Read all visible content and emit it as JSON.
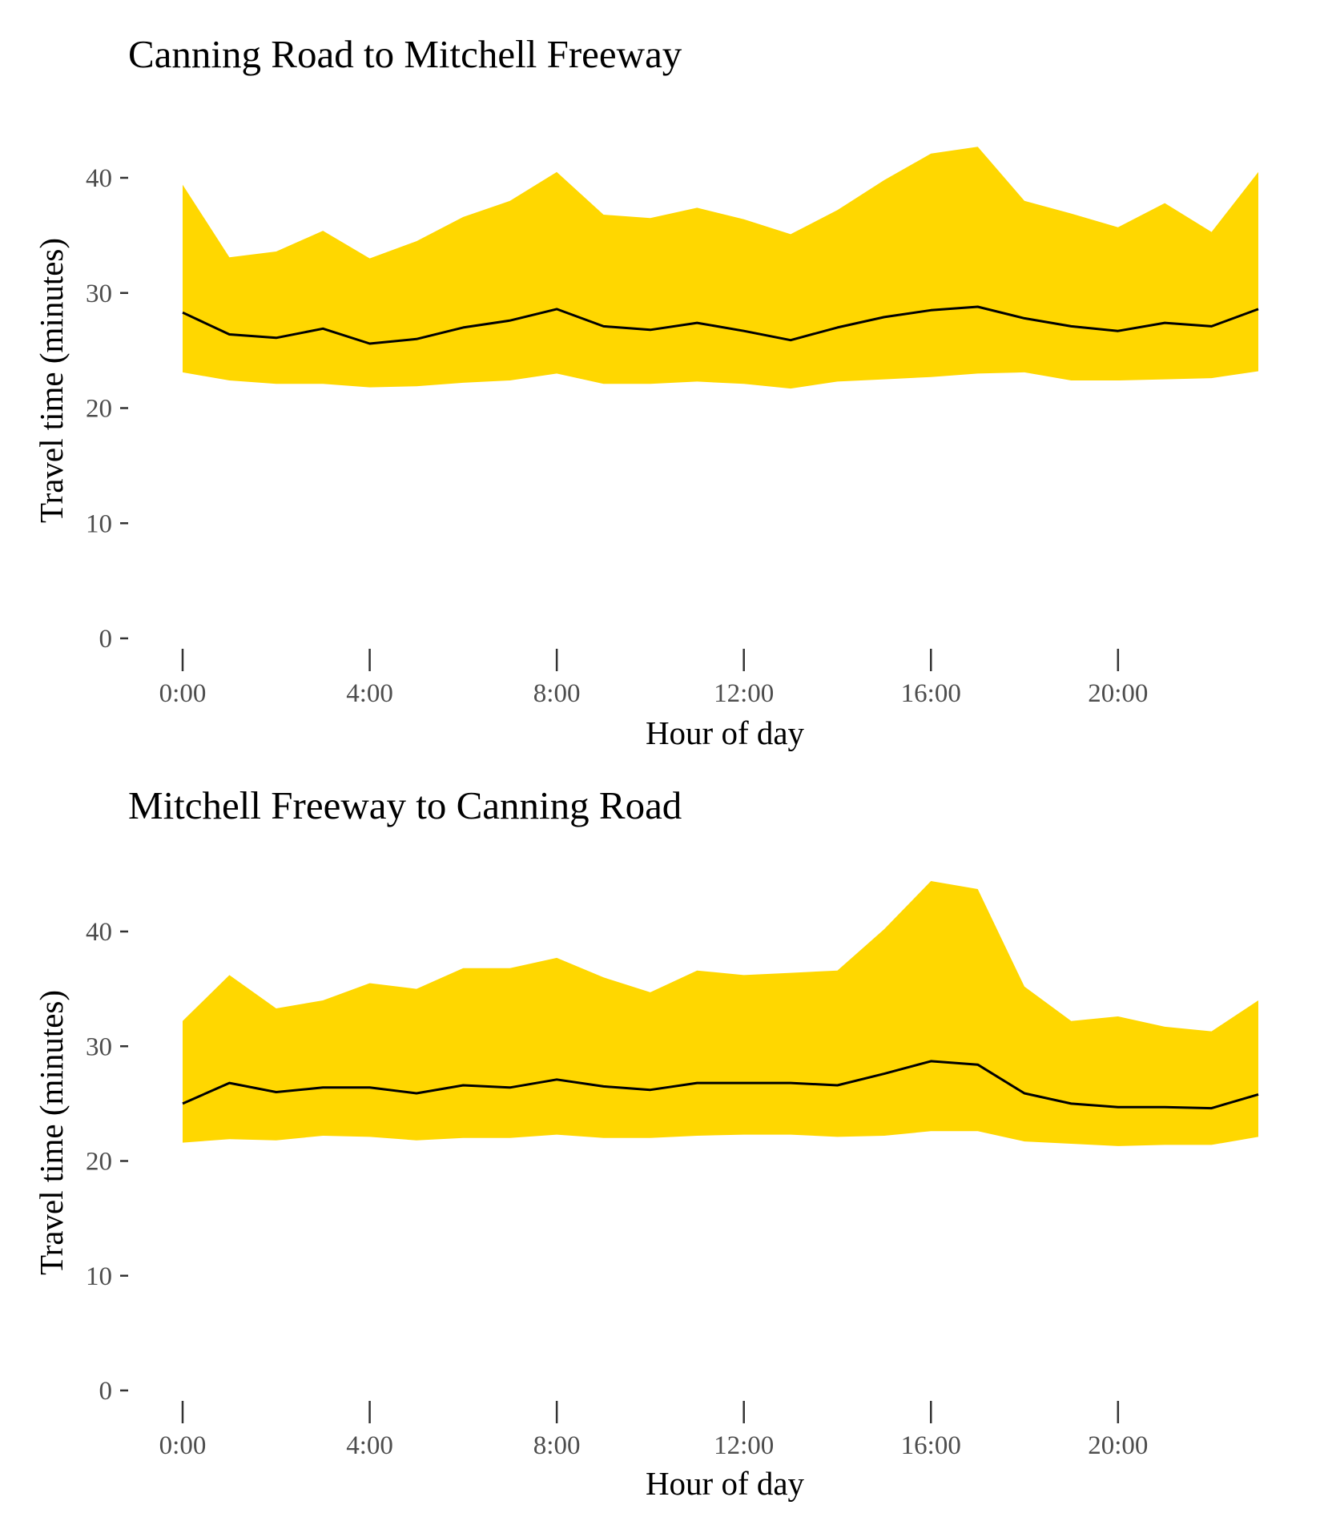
{
  "chart_data": [
    {
      "type": "area",
      "title": "Canning Road to Mitchell Freeway",
      "xlabel": "Hour of day",
      "ylabel": "Travel time (minutes)",
      "x": [
        0,
        1,
        2,
        3,
        4,
        5,
        6,
        7,
        8,
        9,
        10,
        11,
        12,
        13,
        14,
        15,
        16,
        17,
        18,
        19,
        20,
        21,
        22,
        23
      ],
      "xticks": [
        0,
        4,
        8,
        12,
        16,
        20
      ],
      "xtick_labels": [
        "0:00",
        "4:00",
        "8:00",
        "12:00",
        "16:00",
        "20:00"
      ],
      "yticks": [
        0,
        10,
        20,
        30,
        40
      ],
      "ylim": [
        0,
        46
      ],
      "grid": false,
      "band_color": "#FFD700",
      "line_color": "#000000",
      "series": [
        {
          "role": "upper",
          "values": [
            39.4,
            33.1,
            33.6,
            35.4,
            33.0,
            34.5,
            36.6,
            38.0,
            40.5,
            36.8,
            36.5,
            37.4,
            36.4,
            35.1,
            37.2,
            39.8,
            42.1,
            42.7,
            38.0,
            36.9,
            35.7,
            37.8,
            35.3,
            40.5
          ]
        },
        {
          "role": "median",
          "values": [
            28.3,
            26.4,
            26.1,
            26.9,
            25.6,
            26.0,
            27.0,
            27.6,
            28.6,
            27.1,
            26.8,
            27.4,
            26.7,
            25.9,
            27.0,
            27.9,
            28.5,
            28.8,
            27.8,
            27.1,
            26.7,
            27.4,
            27.1,
            28.6
          ]
        },
        {
          "role": "lower",
          "values": [
            23.1,
            22.4,
            22.1,
            22.1,
            21.8,
            21.9,
            22.2,
            22.4,
            23.0,
            22.1,
            22.1,
            22.3,
            22.1,
            21.7,
            22.3,
            22.5,
            22.7,
            23.0,
            23.1,
            22.4,
            22.4,
            22.5,
            22.6,
            23.2
          ]
        }
      ]
    },
    {
      "type": "area",
      "title": "Mitchell Freeway to Canning Road",
      "xlabel": "Hour of day",
      "ylabel": "Travel time (minutes)",
      "x": [
        0,
        1,
        2,
        3,
        4,
        5,
        6,
        7,
        8,
        9,
        10,
        11,
        12,
        13,
        14,
        15,
        16,
        17,
        18,
        19,
        20,
        21,
        22,
        23
      ],
      "xticks": [
        0,
        4,
        8,
        12,
        16,
        20
      ],
      "xtick_labels": [
        "0:00",
        "4:00",
        "8:00",
        "12:00",
        "16:00",
        "20:00"
      ],
      "yticks": [
        0,
        10,
        20,
        30,
        40
      ],
      "ylim": [
        0,
        46
      ],
      "grid": false,
      "band_color": "#FFD700",
      "line_color": "#000000",
      "series": [
        {
          "role": "upper",
          "values": [
            32.2,
            36.2,
            33.3,
            34.0,
            35.5,
            35.0,
            36.8,
            36.8,
            37.7,
            36.0,
            34.7,
            36.6,
            36.2,
            36.4,
            36.6,
            40.2,
            44.4,
            43.7,
            35.2,
            32.2,
            32.6,
            31.7,
            31.3,
            34.0
          ]
        },
        {
          "role": "median",
          "values": [
            25.0,
            26.8,
            26.0,
            26.4,
            26.4,
            25.9,
            26.6,
            26.4,
            27.1,
            26.5,
            26.2,
            26.8,
            26.8,
            26.8,
            26.6,
            27.6,
            28.7,
            28.4,
            25.9,
            25.0,
            24.7,
            24.7,
            24.6,
            25.8
          ]
        },
        {
          "role": "lower",
          "values": [
            21.6,
            21.9,
            21.8,
            22.2,
            22.1,
            21.8,
            22.0,
            22.0,
            22.3,
            22.0,
            22.0,
            22.2,
            22.3,
            22.3,
            22.1,
            22.2,
            22.6,
            22.6,
            21.7,
            21.5,
            21.3,
            21.4,
            21.4,
            22.1
          ]
        }
      ]
    }
  ]
}
